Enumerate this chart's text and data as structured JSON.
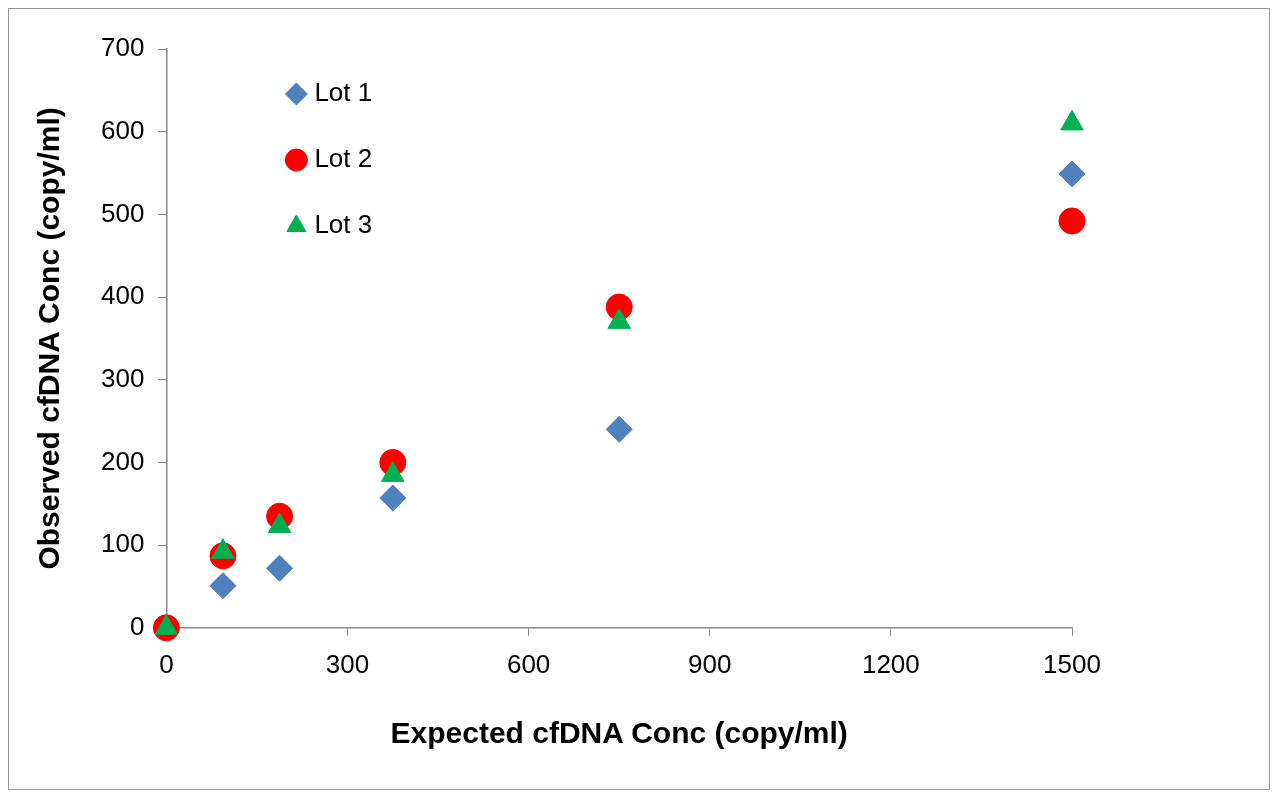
{
  "chart_data": {
    "type": "scatter",
    "xlabel": "Expected cfDNA Conc (copy/ml)",
    "ylabel": "Observed cfDNA Conc (copy/ml)",
    "xlim": [
      0,
      1500
    ],
    "xticks": [
      0,
      300,
      600,
      900,
      1200,
      1500
    ],
    "ylim": [
      0,
      700
    ],
    "yticks": [
      0,
      100,
      200,
      300,
      400,
      500,
      600,
      700
    ],
    "grid": false,
    "legend": "top left",
    "x": [
      0,
      93.75,
      187.5,
      375,
      750,
      1500
    ],
    "series": [
      {
        "name": "Lot 1",
        "color": "#4f81bd",
        "marker": "diamond",
        "values": [
          null,
          51,
          72,
          157,
          240,
          549
        ]
      },
      {
        "name": "Lot 2",
        "color": "#ff0000",
        "marker": "circle",
        "values": [
          0,
          87,
          135,
          200,
          388,
          492
        ]
      },
      {
        "name": "Lot 3",
        "color": "#00b050",
        "marker": "triangle",
        "values": [
          0,
          92,
          123,
          185,
          370,
          610
        ]
      }
    ]
  }
}
